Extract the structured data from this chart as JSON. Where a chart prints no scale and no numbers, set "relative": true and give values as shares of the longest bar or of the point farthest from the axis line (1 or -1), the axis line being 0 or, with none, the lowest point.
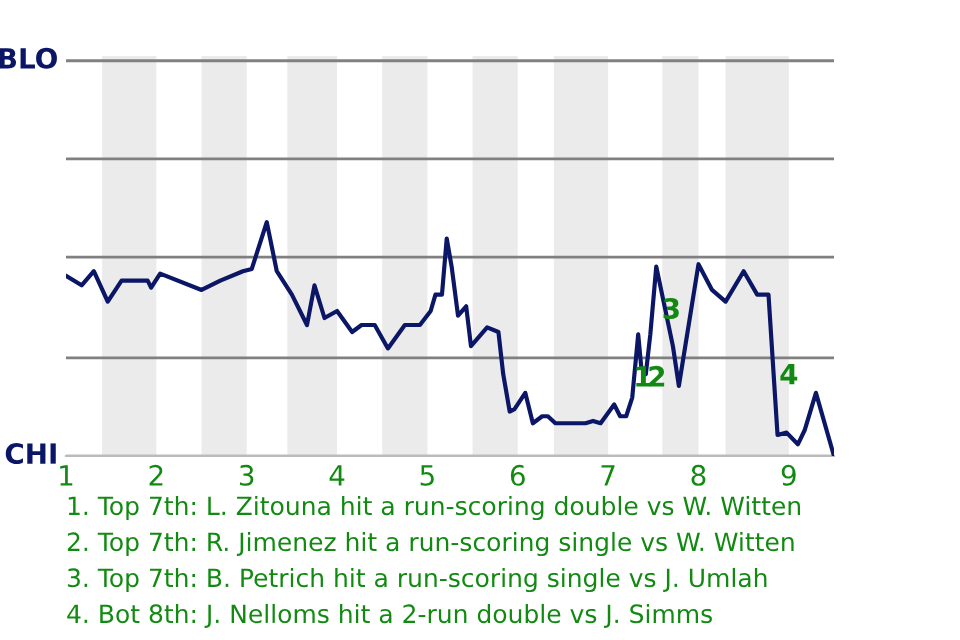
{
  "chart_data": {
    "type": "line",
    "relative": true,
    "x": [
      1.0,
      1.173,
      1.308,
      1.462,
      1.615,
      1.904,
      1.942,
      2.042,
      2.5,
      2.708,
      2.958,
      3.056,
      3.222,
      3.333,
      3.5,
      3.667,
      3.75,
      3.861,
      4.0,
      4.167,
      4.271,
      4.417,
      4.563,
      4.75,
      4.917,
      5.036,
      5.089,
      5.161,
      5.214,
      5.268,
      5.339,
      5.429,
      5.482,
      5.661,
      5.786,
      5.839,
      5.911,
      5.964,
      6.083,
      6.167,
      6.271,
      6.333,
      6.417,
      6.75,
      6.833,
      6.917,
      7.067,
      7.133,
      7.2,
      7.267,
      7.333,
      7.367,
      7.417,
      7.467,
      7.533,
      7.717,
      7.783,
      8.0,
      8.15,
      8.3,
      8.5,
      8.65,
      8.775,
      8.875,
      8.975,
      9.1,
      9.175,
      9.3,
      9.5
    ],
    "series": [
      {
        "color": "#0b1766",
        "values": [
          0.77,
          0.73,
          0.79,
          0.66,
          0.75,
          0.75,
          0.72,
          0.78,
          0.71,
          0.75,
          0.79,
          0.8,
          1,
          0.79,
          0.69,
          0.56,
          0.73,
          0.59,
          0.62,
          0.53,
          0.56,
          0.56,
          0.46,
          0.56,
          0.56,
          0.62,
          0.69,
          0.69,
          0.93,
          0.81,
          0.6,
          0.64,
          0.47,
          0.55,
          0.53,
          0.35,
          0.19,
          0.2,
          0.27,
          0.14,
          0.17,
          0.17,
          0.14,
          0.14,
          0.15,
          0.14,
          0.22,
          0.17,
          0.17,
          0.25,
          0.52,
          0.38,
          0.35,
          0.52,
          0.81,
          0.47,
          0.3,
          0.82,
          0.71,
          0.66,
          0.79,
          0.69,
          0.69,
          0.09,
          0.1,
          0.05,
          0.11,
          0.27,
          0
        ]
      }
    ],
    "xlim": [
      1,
      9.5
    ],
    "xticks": [
      1,
      2,
      3,
      4,
      5,
      6,
      7,
      8,
      9
    ],
    "marker": "none",
    "line_style": "solid",
    "ref_lines": [
      {
        "axis": "y",
        "value": 0,
        "label": "CHI",
        "color": "#bbbbbb"
      },
      {
        "axis": "y",
        "value": 0.42,
        "label": null,
        "color": "#808080"
      },
      {
        "axis": "y",
        "value": 0.85,
        "label": null,
        "color": "#808080"
      },
      {
        "axis": "y",
        "value": 1.27,
        "label": null,
        "color": "#808080"
      },
      {
        "axis": "y",
        "value": 1.69,
        "label": "BLO",
        "color": "#808080"
      }
    ],
    "bands": [
      {
        "axis": "x",
        "from": 1.4,
        "to": 2,
        "label": null,
        "color": "#ebebeb"
      },
      {
        "axis": "x",
        "from": 2.5,
        "to": 3,
        "label": null,
        "color": "#ebebeb"
      },
      {
        "axis": "x",
        "from": 3.45,
        "to": 4,
        "label": null,
        "color": "#ebebeb"
      },
      {
        "axis": "x",
        "from": 4.5,
        "to": 5,
        "label": null,
        "color": "#ebebeb"
      },
      {
        "axis": "x",
        "from": 5.5,
        "to": 6,
        "label": null,
        "color": "#ebebeb"
      },
      {
        "axis": "x",
        "from": 6.4,
        "to": 7,
        "label": null,
        "color": "#ebebeb"
      },
      {
        "axis": "x",
        "from": 7.6,
        "to": 8,
        "label": null,
        "color": "#ebebeb"
      },
      {
        "axis": "x",
        "from": 8.3,
        "to": 9,
        "label": null,
        "color": "#ebebeb"
      }
    ],
    "annotations": [
      {
        "text": "1",
        "x": 7.383,
        "y": 0.33
      },
      {
        "text": "2",
        "x": 7.54,
        "y": 0.33
      },
      {
        "text": "3",
        "x": 7.7,
        "y": 0.62
      },
      {
        "text": "4",
        "x": 9.0,
        "y": 0.34
      },
      "1. Top 7th: L. Zitouna hit a run-scoring double vs W. Witten",
      "2. Top 7th: R. Jimenez hit a run-scoring single vs W. Witten",
      "3. Top 7th: B. Petrich hit a run-scoring single vs J. Umlah",
      "4. Bot 8th: J. Nelloms hit a 2-run double vs J. Simms"
    ]
  }
}
